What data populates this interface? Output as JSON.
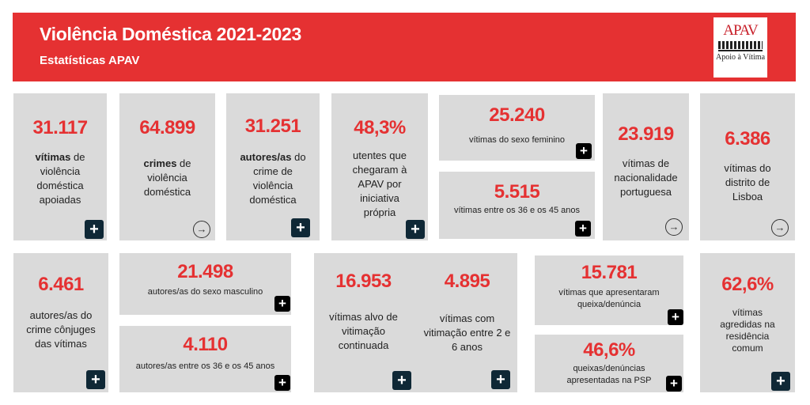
{
  "header": {
    "title": "Violência Doméstica 2021-2023",
    "subtitle": "Estatísticas APAV",
    "logo": {
      "name": "APAV",
      "tagline": "Apoio à Vítima"
    }
  },
  "colors": {
    "accent": "#e53132",
    "card": "#dadada",
    "button": "#0f2836"
  },
  "cards": {
    "c1": {
      "value": "31.117",
      "bold": "vítimas",
      "text": " de violência doméstica apoiadas",
      "action": "plus"
    },
    "c2": {
      "value": "64.899",
      "bold": "crimes",
      "text": " de violência doméstica",
      "action": "arrow"
    },
    "c3": {
      "value": "31.251",
      "bold": "autores/as",
      "text": " do crime de violência doméstica",
      "action": "plus"
    },
    "c4": {
      "value": "48,3%",
      "text": "utentes que chegaram à APAV por iniciativa própria",
      "action": "plus"
    },
    "c5a": {
      "value": "25.240",
      "text": "vítimas do sexo feminino",
      "action": "plus"
    },
    "c5b": {
      "value": "5.515",
      "text": "vítimas entre os 36 e os 45 anos",
      "action": "plus"
    },
    "c6": {
      "value": "23.919",
      "text": "vítimas de nacionalidade portuguesa",
      "action": "arrow"
    },
    "c7": {
      "value": "6.386",
      "text": "vítimas do distrito de Lisboa",
      "action": "arrow"
    },
    "d1": {
      "value": "6.461",
      "text": "autores/as do crime cônjuges das vítimas",
      "action": "plus"
    },
    "d2a": {
      "value": "21.498",
      "text": "autores/as do sexo masculino",
      "action": "plus"
    },
    "d2b": {
      "value": "4.110",
      "text": "autores/as entre os 36 e os 45 anos",
      "action": "plus"
    },
    "d3a": {
      "value": "16.953",
      "text": "vítimas alvo de vitimação continuada",
      "action": "plus"
    },
    "d3b": {
      "value": "4.895",
      "text": "vítimas com vitimação entre 2 e 6 anos",
      "action": "plus"
    },
    "d4a": {
      "value": "15.781",
      "text": "vítimas que apresentaram queixa/denúncia",
      "action": "plus"
    },
    "d4b": {
      "value": "46,6%",
      "text": "queixas/denúncias apresentadas na PSP",
      "action": "plus"
    },
    "d5": {
      "value": "62,6%",
      "text": "vítimas agredidas na residência comum",
      "action": "plus"
    }
  },
  "icons": {
    "plus": "+",
    "arrow": "→"
  }
}
